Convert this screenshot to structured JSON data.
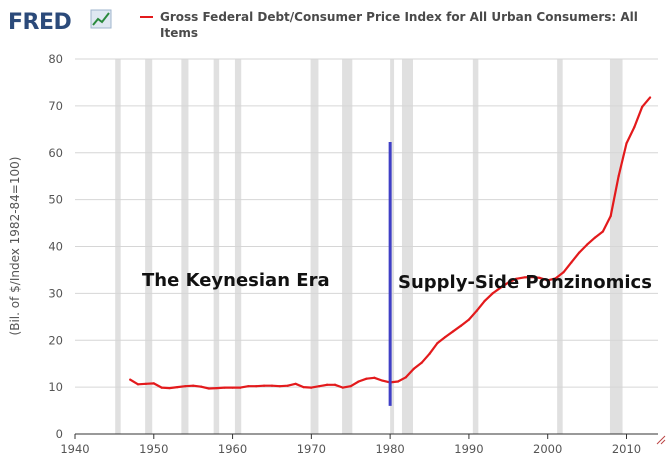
{
  "logo": {
    "text": "FRED",
    "icon": "fred-chart-icon"
  },
  "colors": {
    "series": "#e31a1c",
    "recession": "#e0e0e0",
    "marker": "#3f3fc6",
    "grid": "#d6d6d6",
    "logo": "#2b4a7a"
  },
  "chart_data": {
    "type": "line",
    "title": "",
    "ylabel": "(Bil. of $/Index 1982-84=100)",
    "xlabel": "",
    "xlim": [
      1940,
      2014
    ],
    "ylim": [
      0,
      80
    ],
    "x_ticks": [
      "1940",
      "1950",
      "1960",
      "1970",
      "1980",
      "1990",
      "2000",
      "2010"
    ],
    "y_ticks": [
      "0",
      "10",
      "20",
      "30",
      "40",
      "50",
      "60",
      "70",
      "80"
    ],
    "grid": "horizontal",
    "legend_position": "top",
    "series": [
      {
        "name": "Gross Federal Debt/Consumer Price Index for All Urban Consumers: All Items",
        "color": "#e31a1c",
        "x": [
          1947,
          1948,
          1949,
          1950,
          1951,
          1952,
          1953,
          1954,
          1955,
          1956,
          1957,
          1958,
          1959,
          1960,
          1961,
          1962,
          1963,
          1964,
          1965,
          1966,
          1967,
          1968,
          1969,
          1970,
          1971,
          1972,
          1973,
          1974,
          1975,
          1976,
          1977,
          1978,
          1979,
          1980,
          1981,
          1982,
          1983,
          1984,
          1985,
          1986,
          1987,
          1988,
          1989,
          1990,
          1991,
          1992,
          1993,
          1994,
          1995,
          1996,
          1997,
          1998,
          1999,
          2000,
          2001,
          2002,
          2003,
          2004,
          2005,
          2006,
          2007,
          2008,
          2009,
          2010,
          2011,
          2012,
          2013
        ],
        "y": [
          11.6,
          10.6,
          10.7,
          10.8,
          9.9,
          9.8,
          10.0,
          10.2,
          10.3,
          10.1,
          9.7,
          9.8,
          9.9,
          9.9,
          9.9,
          10.2,
          10.2,
          10.3,
          10.3,
          10.2,
          10.3,
          10.7,
          10.0,
          9.9,
          10.2,
          10.5,
          10.5,
          9.9,
          10.2,
          11.2,
          11.8,
          12.0,
          11.4,
          11.0,
          11.2,
          12.1,
          13.9,
          15.2,
          17.1,
          19.4,
          20.7,
          21.9,
          23.1,
          24.4,
          26.3,
          28.4,
          30.0,
          31.2,
          32.3,
          33.1,
          33.4,
          33.5,
          33.3,
          32.8,
          33.2,
          34.5,
          36.6,
          38.7,
          40.4,
          41.9,
          43.2,
          46.5,
          55.0,
          62.0,
          65.5,
          69.8,
          71.8
        ]
      }
    ],
    "recessions": [
      [
        1945.1,
        1945.8
      ],
      [
        1948.9,
        1949.8
      ],
      [
        1953.5,
        1954.4
      ],
      [
        1957.6,
        1958.3
      ],
      [
        1960.3,
        1961.1
      ],
      [
        1969.9,
        1970.9
      ],
      [
        1973.9,
        1975.2
      ],
      [
        1980.0,
        1980.5
      ],
      [
        1981.5,
        1982.9
      ],
      [
        1990.5,
        1991.2
      ],
      [
        2001.2,
        2001.9
      ],
      [
        2007.9,
        2009.5
      ]
    ],
    "annotations": [
      {
        "text": "The Keynesian Era"
      },
      {
        "text": "Supply-Side Ponzinomics"
      }
    ],
    "marker_line": {
      "x": 1980,
      "y_from": 6,
      "y_to": 62.3
    }
  }
}
